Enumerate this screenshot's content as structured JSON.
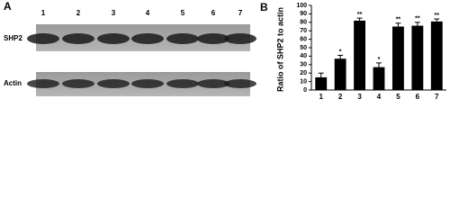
{
  "panel_a": {
    "label": "A",
    "lanes": [
      "1",
      "2",
      "3",
      "4",
      "5",
      "6",
      "7"
    ],
    "rows": [
      "SHP2",
      "Actin"
    ]
  },
  "chart_data": {
    "type": "bar",
    "panel_label": "B",
    "y_label": "Ratio of SHP2 to actin",
    "categories": [
      "1",
      "2",
      "3",
      "4",
      "5",
      "6",
      "7"
    ],
    "values": [
      15,
      37,
      82,
      27,
      75,
      76,
      81
    ],
    "errors": [
      5,
      4,
      3,
      5,
      4,
      4,
      3
    ],
    "annotations": [
      null,
      "*",
      "**",
      "*",
      "**",
      "**",
      "**"
    ],
    "color": "#000000",
    "ylim": [
      0,
      100
    ],
    "yticks": [
      0,
      10,
      20,
      30,
      40,
      50,
      60,
      70,
      80,
      90,
      100
    ]
  }
}
